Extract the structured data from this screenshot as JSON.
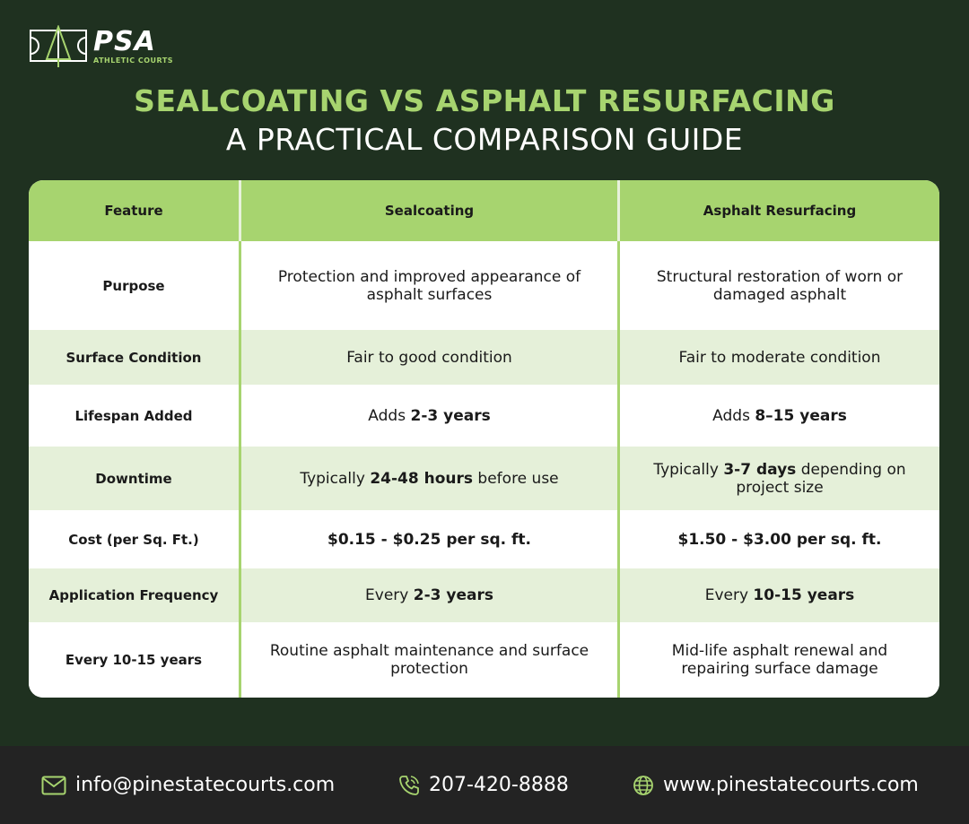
{
  "brand": {
    "name": "PSA",
    "sub": "ATHLETIC COURTS",
    "accent": "#a7d46f",
    "background": "#1f3120"
  },
  "title": {
    "line1": "SEALCOATING VS ASPHALT RESURFACING",
    "line2": "A PRACTICAL COMPARISON GUIDE"
  },
  "table": {
    "headers": [
      "Feature",
      "Sealcoating",
      "Asphalt Resurfacing"
    ],
    "rows": [
      {
        "feature": "Purpose",
        "seal": {
          "pre": "",
          "bold": "",
          "post": "Protection and improved appearance of asphalt surfaces"
        },
        "resurf": {
          "pre": "",
          "bold": "",
          "post": "Structural restoration of worn or damaged asphalt"
        }
      },
      {
        "feature": "Surface Condition",
        "seal": {
          "pre": "",
          "bold": "",
          "post": "Fair to good condition"
        },
        "resurf": {
          "pre": "",
          "bold": "",
          "post": "Fair to moderate condition"
        }
      },
      {
        "feature": "Lifespan Added",
        "seal": {
          "pre": "Adds ",
          "bold": "2-3 years",
          "post": ""
        },
        "resurf": {
          "pre": "Adds ",
          "bold": "8–15 years",
          "post": ""
        }
      },
      {
        "feature": "Downtime",
        "seal": {
          "pre": "Typically ",
          "bold": "24-48 hours",
          "post": " before use"
        },
        "resurf": {
          "pre": "Typically ",
          "bold": "3-7 days",
          "post": " depending on project size"
        }
      },
      {
        "feature": "Cost (per Sq. Ft.)",
        "seal": {
          "pre": "",
          "bold": "$0.15 - $0.25 per sq. ft.",
          "post": ""
        },
        "resurf": {
          "pre": "",
          "bold": "$1.50 - $3.00 per sq. ft.",
          "post": ""
        }
      },
      {
        "feature": "Application Frequency",
        "seal": {
          "pre": "Every ",
          "bold": "2-3 years",
          "post": ""
        },
        "resurf": {
          "pre": "Every ",
          "bold": "10-15 years",
          "post": ""
        }
      },
      {
        "feature": "Every 10-15 years",
        "seal": {
          "pre": "",
          "bold": "",
          "post": "Routine asphalt maintenance and surface protection"
        },
        "resurf": {
          "pre": "",
          "bold": "",
          "post": "Mid-life asphalt renewal and repairing surface damage"
        }
      }
    ]
  },
  "footer": {
    "email": "info@pinestatecourts.com",
    "phone": "207-420-8888",
    "website": "www.pinestatecourts.com"
  }
}
